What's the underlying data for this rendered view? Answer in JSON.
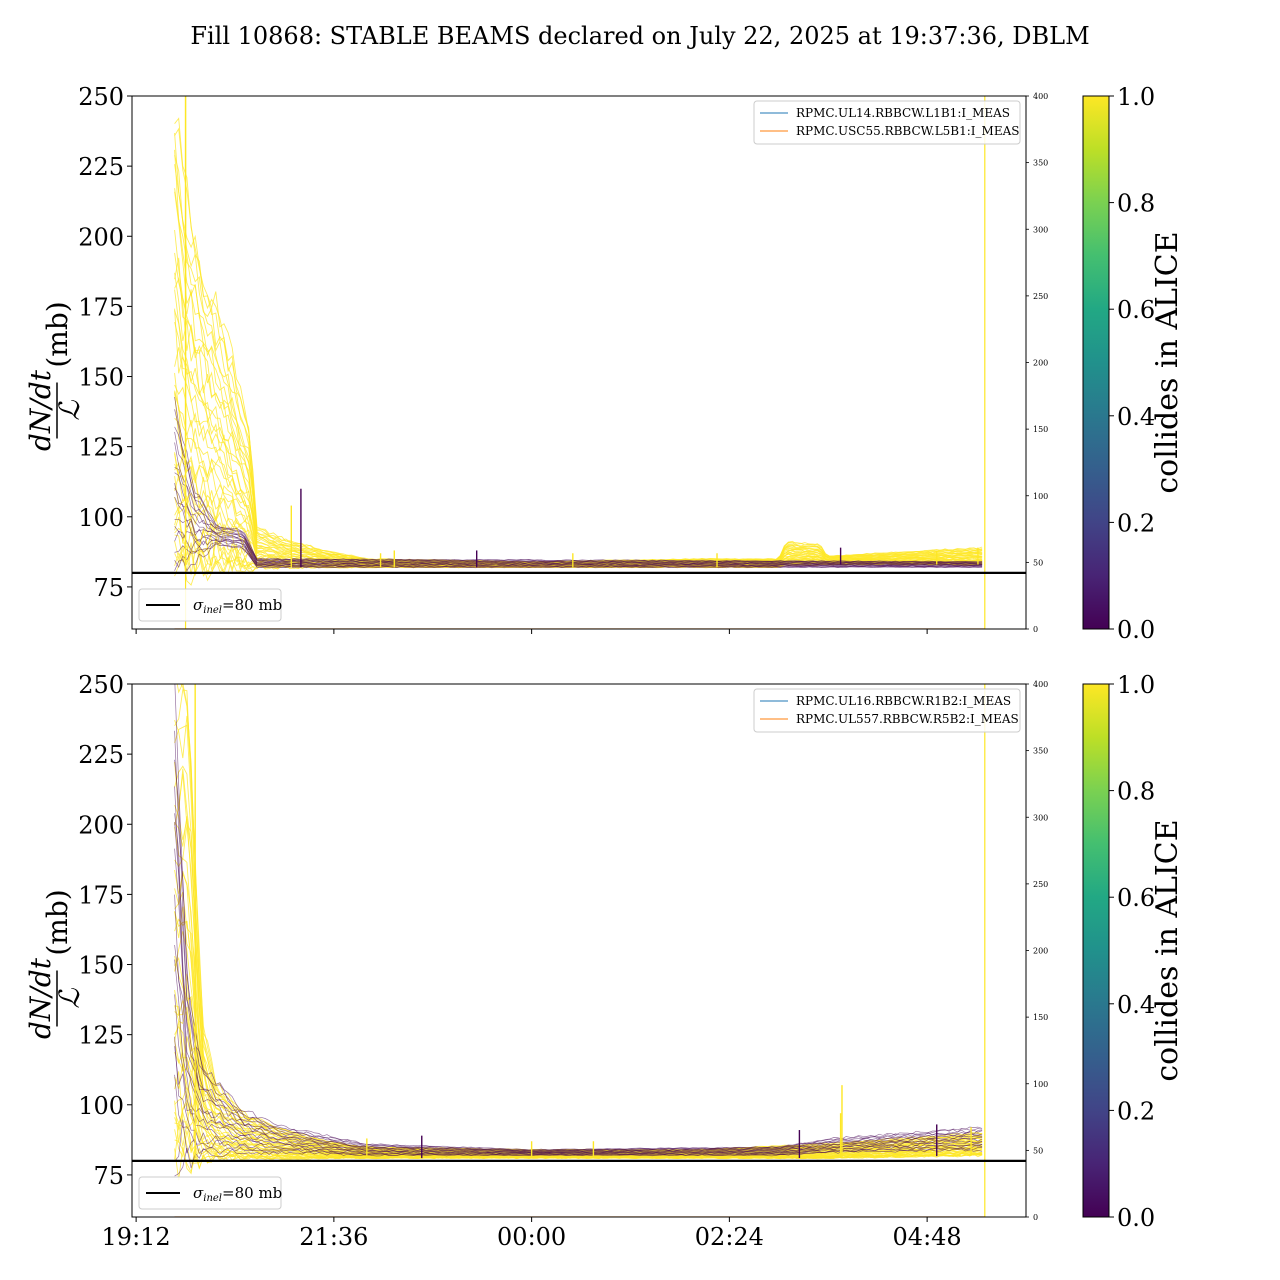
{
  "title": "Fill 10868: STABLE BEAMS declared on July 22, 2025 at 19:37:36, DBLM",
  "colors": {
    "yellow": "#fde725",
    "purple": "#440154",
    "line_blue": "#1f77b4",
    "line_orange": "#ff7f0e",
    "threshold": "#000000"
  },
  "colorbar": {
    "label": "collides in ALICE",
    "ticks": [
      "0.0",
      "0.2",
      "0.4",
      "0.6",
      "0.8",
      "1.0"
    ],
    "range": [
      0.0,
      1.0
    ],
    "colormap": "viridis"
  },
  "chart_data": [
    {
      "type": "line",
      "ylabel_main": "dN/dt",
      "ylabel_denominator": "ℒ",
      "ylabel_unit": "(mb)",
      "ylim": [
        60,
        250
      ],
      "yticks": [
        75,
        100,
        125,
        150,
        175,
        200,
        225,
        250
      ],
      "y2lim": [
        0,
        400
      ],
      "y2ticks": [
        0,
        50,
        100,
        150,
        200,
        250,
        300,
        350,
        400
      ],
      "xlim": [
        "19:09",
        "06:00"
      ],
      "xticks": [
        "19:12",
        "21:36",
        "00:00",
        "02:24",
        "04:48"
      ],
      "xtick_labels_shown": false,
      "legend_upper": [
        "RPMC.UL14.RBBCW.L1B1:I_MEAS",
        "RPMC.USC55.RBBCW.L5B1:I_MEAS"
      ],
      "legend_lower": {
        "prefix": "σ",
        "sub": "inel",
        "suffix": "=80 mb"
      },
      "threshold": 80,
      "vertical_lines": [
        "19:48",
        "05:30"
      ],
      "bulk_envelope": [
        {
          "t": "19:40",
          "low": 84,
          "high": 250
        },
        {
          "t": "19:45",
          "low": 83,
          "high": 225
        },
        {
          "t": "20:00",
          "low": 82,
          "high": 190
        },
        {
          "t": "20:20",
          "low": 82,
          "high": 160
        },
        {
          "t": "20:35",
          "low": 82,
          "high": 130
        },
        {
          "t": "20:40",
          "low": 82,
          "high": 96
        },
        {
          "t": "21:00",
          "low": 82,
          "high": 92
        },
        {
          "t": "21:30",
          "low": 82,
          "high": 88
        },
        {
          "t": "22:00",
          "low": 82,
          "high": 85
        },
        {
          "t": "00:00",
          "low": 82,
          "high": 84
        },
        {
          "t": "02:00",
          "low": 82,
          "high": 85
        },
        {
          "t": "03:00",
          "low": 82,
          "high": 85
        },
        {
          "t": "03:05",
          "low": 83,
          "high": 91
        },
        {
          "t": "03:30",
          "low": 83,
          "high": 90
        },
        {
          "t": "03:35",
          "low": 83,
          "high": 86
        },
        {
          "t": "05:30",
          "low": 83,
          "high": 89
        }
      ],
      "purple_band": [
        {
          "t": "19:40",
          "low": 82,
          "high": 140
        },
        {
          "t": "19:55",
          "low": 84,
          "high": 110
        },
        {
          "t": "20:10",
          "low": 90,
          "high": 97
        },
        {
          "t": "20:30",
          "low": 89,
          "high": 95
        },
        {
          "t": "20:40",
          "low": 82,
          "high": 85
        },
        {
          "t": "05:30",
          "low": 82,
          "high": 84
        }
      ],
      "spikes": [
        {
          "t": "19:48",
          "y": 250
        },
        {
          "t": "21:05",
          "y": 104
        },
        {
          "t": "21:12",
          "y": 110
        },
        {
          "t": "22:10",
          "y": 87
        },
        {
          "t": "22:20",
          "y": 88
        },
        {
          "t": "23:20",
          "y": 88
        },
        {
          "t": "00:30",
          "y": 87
        },
        {
          "t": "02:15",
          "y": 87
        },
        {
          "t": "03:45",
          "y": 89
        },
        {
          "t": "04:55",
          "y": 88
        },
        {
          "t": "05:25",
          "y": 89
        }
      ]
    },
    {
      "type": "line",
      "ylabel_main": "dN/dt",
      "ylabel_denominator": "ℒ",
      "ylabel_unit": "(mb)",
      "ylim": [
        60,
        250
      ],
      "yticks": [
        75,
        100,
        125,
        150,
        175,
        200,
        225,
        250
      ],
      "y2lim": [
        0,
        400
      ],
      "y2ticks": [
        0,
        50,
        100,
        150,
        200,
        250,
        300,
        350,
        400
      ],
      "xlim": [
        "19:09",
        "06:00"
      ],
      "xticks": [
        "19:12",
        "21:36",
        "00:00",
        "02:24",
        "04:48"
      ],
      "xtick_labels_shown": true,
      "legend_upper": [
        "RPMC.UL16.RBBCW.R1B2:I_MEAS",
        "RPMC.UL557.RBBCW.R5B2:I_MEAS"
      ],
      "legend_lower": {
        "prefix": "σ",
        "sub": "inel",
        "suffix": "=80 mb"
      },
      "threshold": 80,
      "vertical_lines": [
        "05:30"
      ],
      "bulk_envelope": [
        {
          "t": "19:40",
          "low": 82,
          "high": 250
        },
        {
          "t": "19:50",
          "low": 81,
          "high": 250
        },
        {
          "t": "20:00",
          "low": 81,
          "high": 130
        },
        {
          "t": "20:10",
          "low": 81,
          "high": 108
        },
        {
          "t": "20:30",
          "low": 81,
          "high": 97
        },
        {
          "t": "21:00",
          "low": 81,
          "high": 91
        },
        {
          "t": "21:30",
          "low": 81,
          "high": 87
        },
        {
          "t": "22:00",
          "low": 81,
          "high": 85
        },
        {
          "t": "00:00",
          "low": 81,
          "high": 84
        },
        {
          "t": "02:00",
          "low": 81,
          "high": 84
        },
        {
          "t": "03:30",
          "low": 81,
          "high": 86
        },
        {
          "t": "05:30",
          "low": 82,
          "high": 90
        }
      ],
      "purple_band": [
        {
          "t": "19:40",
          "low": 81,
          "high": 250
        },
        {
          "t": "19:50",
          "low": 81,
          "high": 140
        },
        {
          "t": "20:00",
          "low": 82,
          "high": 115
        },
        {
          "t": "20:30",
          "low": 83,
          "high": 98
        },
        {
          "t": "21:00",
          "low": 83,
          "high": 92
        },
        {
          "t": "22:00",
          "low": 82,
          "high": 86
        },
        {
          "t": "00:00",
          "low": 82,
          "high": 84
        },
        {
          "t": "03:00",
          "low": 82,
          "high": 85
        },
        {
          "t": "03:40",
          "low": 83,
          "high": 88
        },
        {
          "t": "05:30",
          "low": 84,
          "high": 92
        }
      ],
      "spikes": [
        {
          "t": "19:55",
          "y": 250
        },
        {
          "t": "22:00",
          "y": 88
        },
        {
          "t": "22:40",
          "y": 89
        },
        {
          "t": "00:00",
          "y": 87
        },
        {
          "t": "00:45",
          "y": 87
        },
        {
          "t": "03:15",
          "y": 91
        },
        {
          "t": "03:45",
          "y": 97
        },
        {
          "t": "03:46",
          "y": 107
        },
        {
          "t": "04:55",
          "y": 93
        },
        {
          "t": "05:20",
          "y": 92
        }
      ]
    }
  ]
}
